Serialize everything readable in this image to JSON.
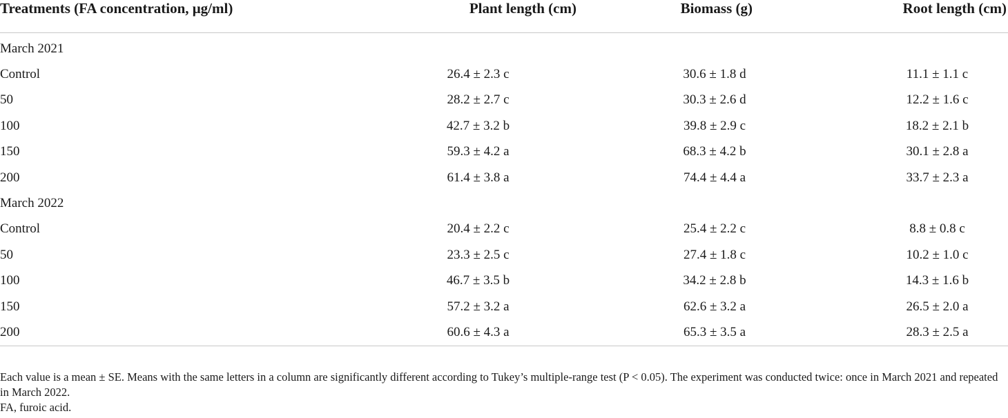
{
  "table": {
    "headers": [
      "Treatments (FA concentration, μg/ml)",
      "Plant length (cm)",
      "Biomass (g)",
      "Root length (cm)"
    ],
    "groups": [
      {
        "label": "March 2021",
        "rows": [
          {
            "treatment": "Control",
            "plant_length": "26.4 ± 2.3 c",
            "biomass": "30.6 ± 1.8 d",
            "root_length": "11.1 ± 1.1 c"
          },
          {
            "treatment": "50",
            "plant_length": "28.2 ± 2.7 c",
            "biomass": "30.3 ± 2.6 d",
            "root_length": "12.2 ± 1.6 c"
          },
          {
            "treatment": "100",
            "plant_length": "42.7 ± 3.2 b",
            "biomass": "39.8 ± 2.9 c",
            "root_length": "18.2 ± 2.1 b"
          },
          {
            "treatment": "150",
            "plant_length": "59.3 ± 4.2 a",
            "biomass": "68.3 ± 4.2 b",
            "root_length": "30.1 ± 2.8 a"
          },
          {
            "treatment": "200",
            "plant_length": "61.4 ± 3.8 a",
            "biomass": "74.4 ± 4.4 a",
            "root_length": "33.7 ± 2.3 a"
          }
        ]
      },
      {
        "label": "March 2022",
        "rows": [
          {
            "treatment": "Control",
            "plant_length": "20.4 ± 2.2 c",
            "biomass": "25.4 ± 2.2 c",
            "root_length": "8.8 ± 0.8 c"
          },
          {
            "treatment": "50",
            "plant_length": "23.3 ± 2.5 c",
            "biomass": "27.4 ± 1.8 c",
            "root_length": "10.2 ± 1.0 c"
          },
          {
            "treatment": "100",
            "plant_length": "46.7 ± 3.5 b",
            "biomass": "34.2 ± 2.8 b",
            "root_length": "14.3 ± 1.6 b"
          },
          {
            "treatment": "150",
            "plant_length": "57.2 ± 3.2 a",
            "biomass": "62.6 ± 3.2 a",
            "root_length": "26.5 ± 2.0 a"
          },
          {
            "treatment": "200",
            "plant_length": "60.6 ± 4.3 a",
            "biomass": "65.3 ± 3.5 a",
            "root_length": "28.3 ± 2.5 a"
          }
        ]
      }
    ]
  },
  "footnotes": [
    "Each value is a mean ± SE. Means with the same letters in a column are significantly different according to Tukey’s multiple-range test (P < 0.05). The experiment was conducted twice: once in March 2021 and repeated in March 2022.",
    "FA, furoic acid."
  ]
}
